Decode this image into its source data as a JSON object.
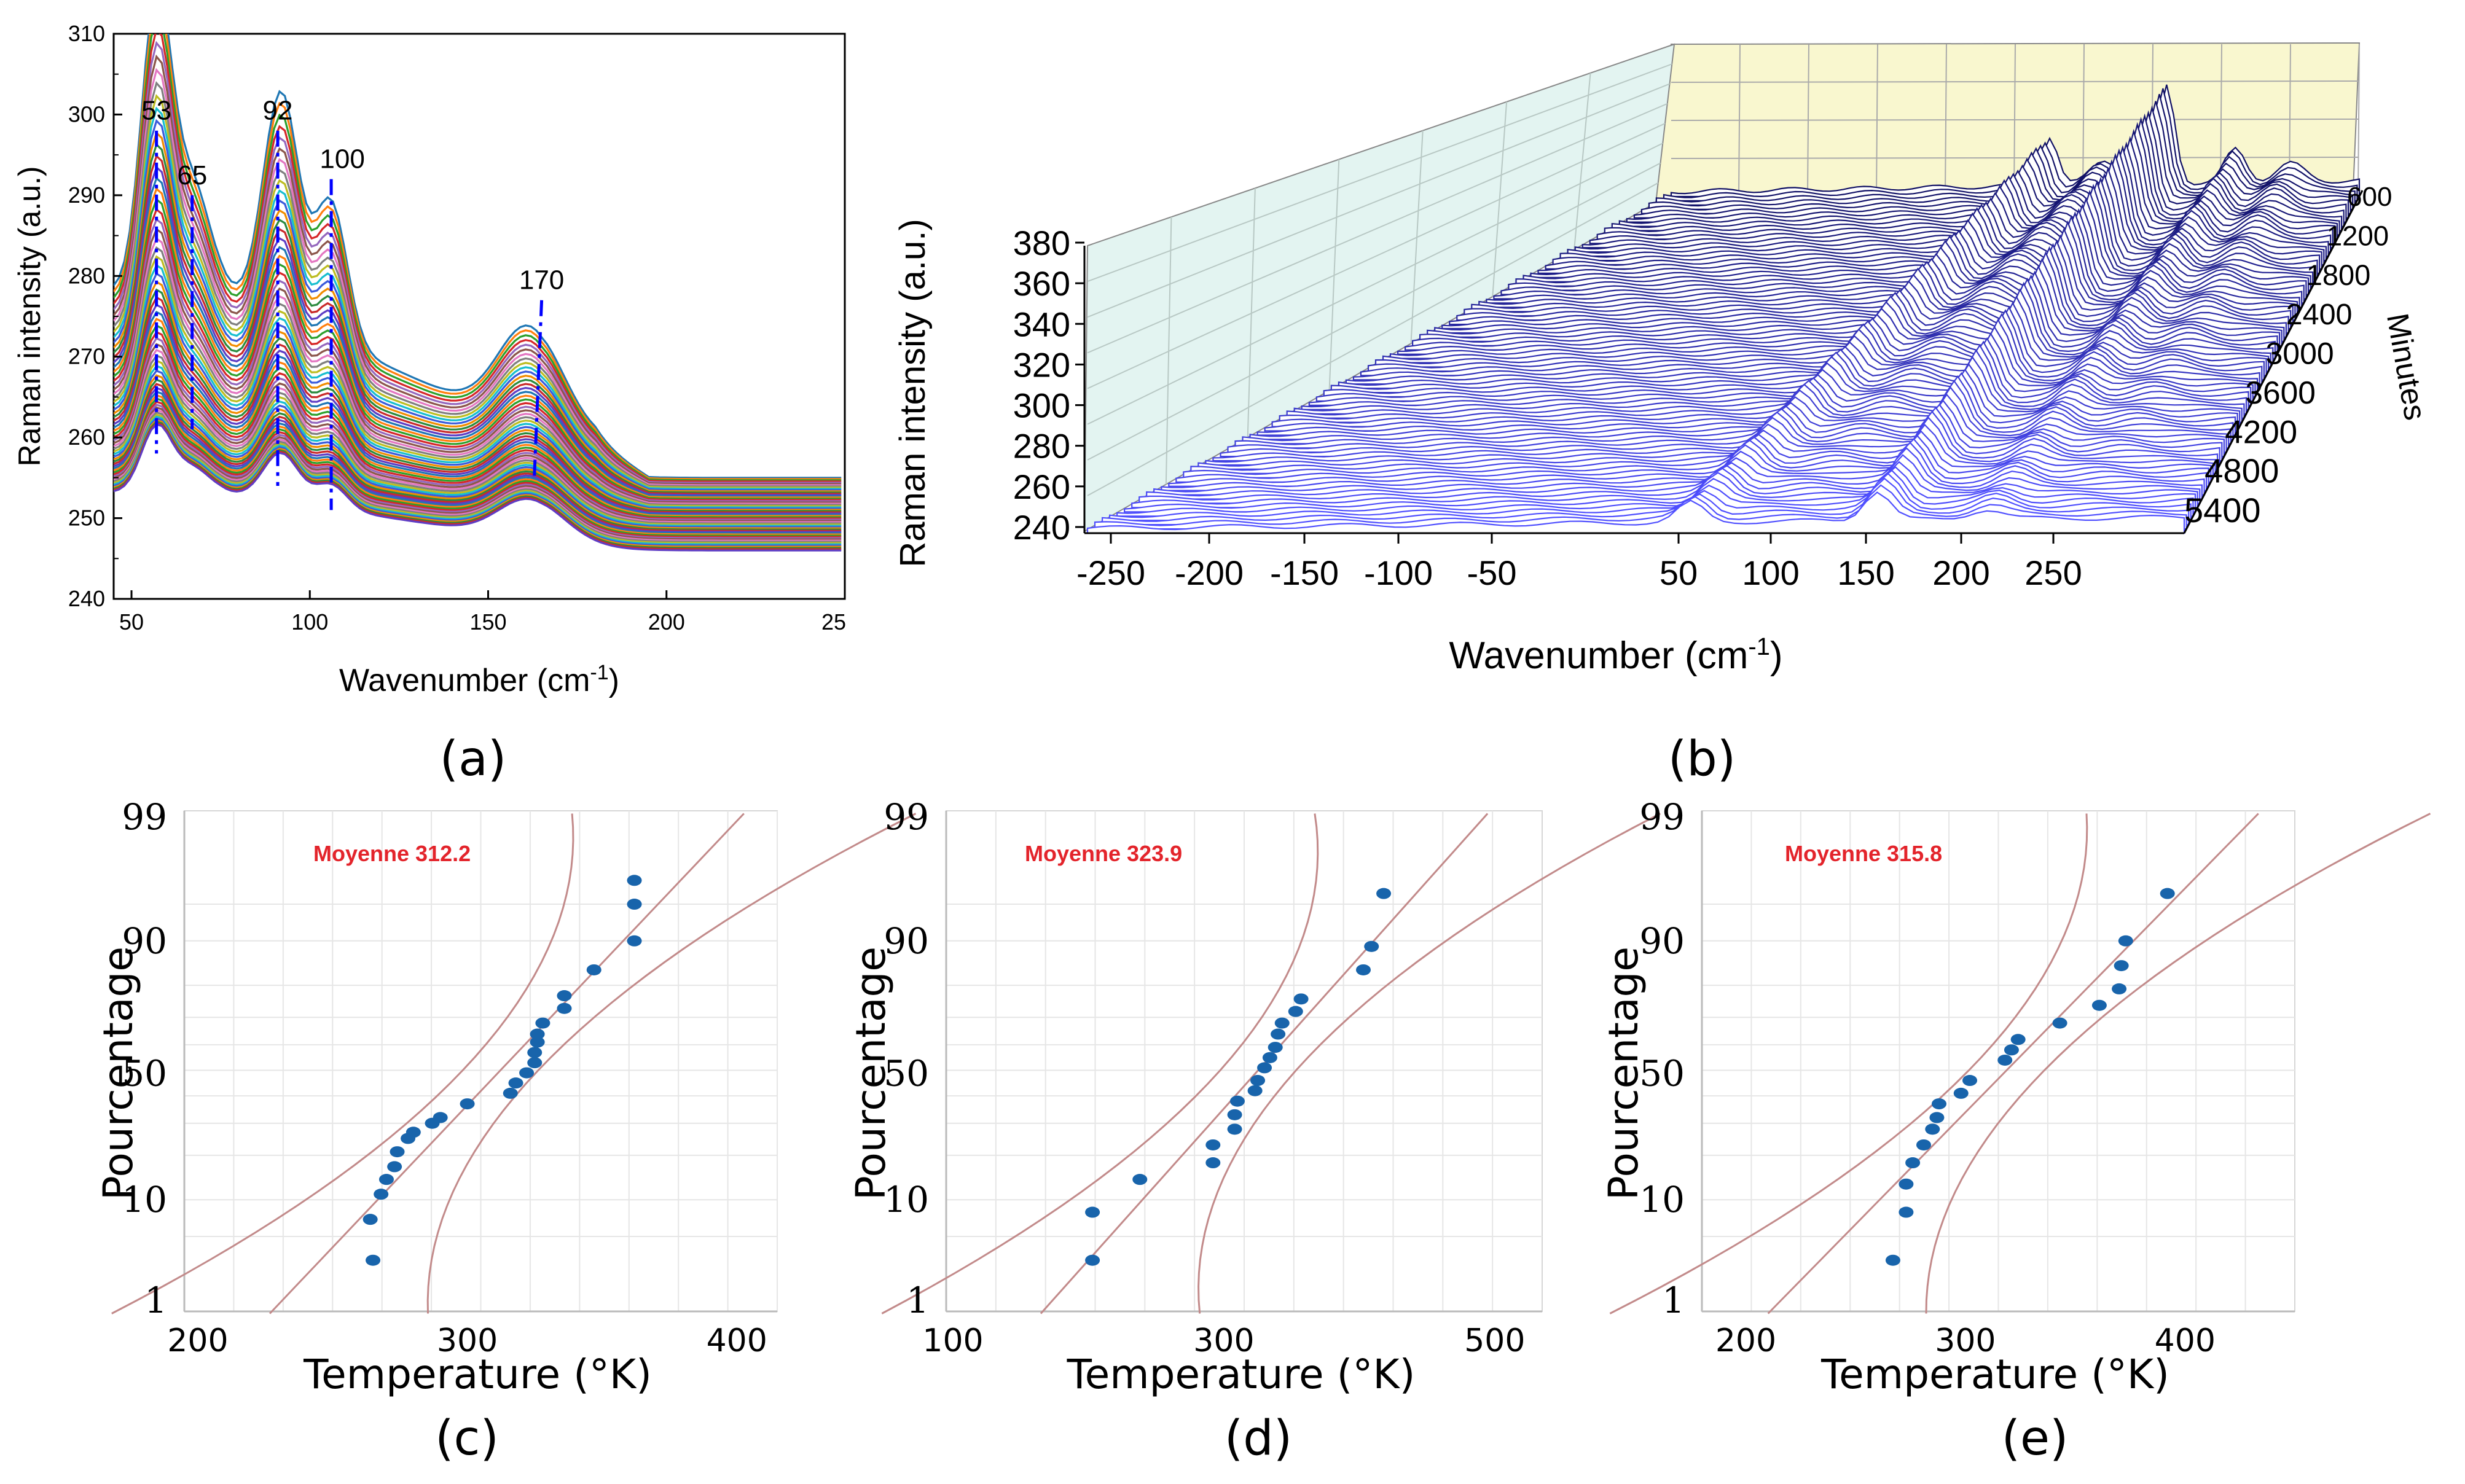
{
  "chart_data": [
    {
      "panel": "(a)",
      "type": "line",
      "xlabel": "Wavenumber (cm",
      "xlabel_sup": "-1",
      "xlabel_end": ")",
      "ylabel": "Raman intensity (a.u.)",
      "xlim": [
        45,
        250
      ],
      "ylim": [
        240,
        310
      ],
      "xticks": [
        "50",
        "100",
        "150",
        "200",
        "25"
      ],
      "yticks": [
        "240",
        "250",
        "260",
        "270",
        "280",
        "290",
        "300",
        "310"
      ],
      "peaks": [
        {
          "label": "53",
          "x": 57,
          "top": 298,
          "bottom": 258
        },
        {
          "label": "65",
          "x": 67,
          "top": 290,
          "bottom": 261
        },
        {
          "label": "92",
          "x": 91,
          "top": 298,
          "bottom": 254
        },
        {
          "label": "100",
          "x": 106,
          "top": 292,
          "bottom": 251
        },
        {
          "label": "170",
          "x": 165,
          "top": 277,
          "bottom": 255
        }
      ],
      "series_count": 60
    },
    {
      "panel": "(b)",
      "type": "area",
      "xlabel": "Wavenumber (cm",
      "xlabel_sup": "-1",
      "xlabel_end": ")",
      "ylabel": "Raman intensity (a.u.)",
      "zlabel": "Minutes",
      "xticks": [
        "-250",
        "-200",
        "-150",
        "-100",
        "-50",
        "50",
        "100",
        "150",
        "200",
        "250"
      ],
      "yticks": [
        "240",
        "260",
        "280",
        "300",
        "320",
        "340",
        "360",
        "380"
      ],
      "zticks": [
        "600",
        "1200",
        "1800",
        "2400",
        "3000",
        "3600",
        "4200",
        "4800",
        "5400"
      ]
    },
    {
      "panel": "(c)",
      "type": "scatter",
      "annotation": "Moyenne 312.2",
      "xlabel": "Temperature (°K)",
      "ylabel": "Pourcentage",
      "xticks": [
        "200",
        "300",
        "400"
      ],
      "xlim": [
        195,
        415
      ],
      "yticks": [
        "1",
        "10",
        "50",
        "90",
        "99"
      ],
      "points": [
        [
          265,
          3
        ],
        [
          264,
          7
        ],
        [
          268,
          11
        ],
        [
          270,
          14
        ],
        [
          273,
          17
        ],
        [
          274,
          21
        ],
        [
          278,
          25
        ],
        [
          280,
          27
        ],
        [
          287,
          30
        ],
        [
          290,
          32
        ],
        [
          300,
          37
        ],
        [
          316,
          41
        ],
        [
          318,
          45
        ],
        [
          322,
          49
        ],
        [
          325,
          53
        ],
        [
          325,
          57
        ],
        [
          326,
          61
        ],
        [
          326,
          64
        ],
        [
          328,
          68
        ],
        [
          336,
          73
        ],
        [
          336,
          77
        ],
        [
          347,
          84
        ],
        [
          362,
          90
        ],
        [
          362,
          95
        ],
        [
          362,
          97
        ]
      ]
    },
    {
      "panel": "(d)",
      "type": "scatter",
      "annotation": "Moyenne 323.9",
      "xlabel": "Temperature (°K)",
      "ylabel": "Pourcentage",
      "xticks": [
        "100",
        "300",
        "500"
      ],
      "xlim": [
        95,
        535
      ],
      "yticks": [
        "1",
        "10",
        "50",
        "90",
        "99"
      ],
      "points": [
        [
          203,
          3
        ],
        [
          203,
          8
        ],
        [
          238,
          14
        ],
        [
          292,
          18
        ],
        [
          292,
          23
        ],
        [
          308,
          28
        ],
        [
          308,
          33
        ],
        [
          310,
          38
        ],
        [
          323,
          42
        ],
        [
          325,
          46
        ],
        [
          330,
          51
        ],
        [
          334,
          55
        ],
        [
          338,
          59
        ],
        [
          340,
          64
        ],
        [
          343,
          68
        ],
        [
          353,
          72
        ],
        [
          357,
          76
        ],
        [
          403,
          84
        ],
        [
          409,
          89
        ],
        [
          418,
          96
        ]
      ]
    },
    {
      "panel": "(e)",
      "type": "scatter",
      "annotation": "Moyenne 315.8",
      "xlabel": "Temperature (°K)",
      "ylabel": "Pourcentage",
      "xticks": [
        "200",
        "300",
        "400"
      ],
      "xlim": [
        180,
        450
      ],
      "yticks": [
        "1",
        "10",
        "50",
        "90",
        "99"
      ],
      "points": [
        [
          267,
          3
        ],
        [
          273,
          8
        ],
        [
          273,
          13
        ],
        [
          276,
          18
        ],
        [
          281,
          23
        ],
        [
          285,
          28
        ],
        [
          287,
          32
        ],
        [
          288,
          37
        ],
        [
          298,
          41
        ],
        [
          302,
          46
        ],
        [
          318,
          54
        ],
        [
          321,
          58
        ],
        [
          324,
          62
        ],
        [
          343,
          68
        ],
        [
          361,
          74
        ],
        [
          370,
          79
        ],
        [
          371,
          85
        ],
        [
          373,
          90
        ],
        [
          392,
          96
        ]
      ]
    }
  ],
  "panel_labels": [
    "(a)",
    "(b)",
    "(c)",
    "(d)",
    "(e)"
  ]
}
